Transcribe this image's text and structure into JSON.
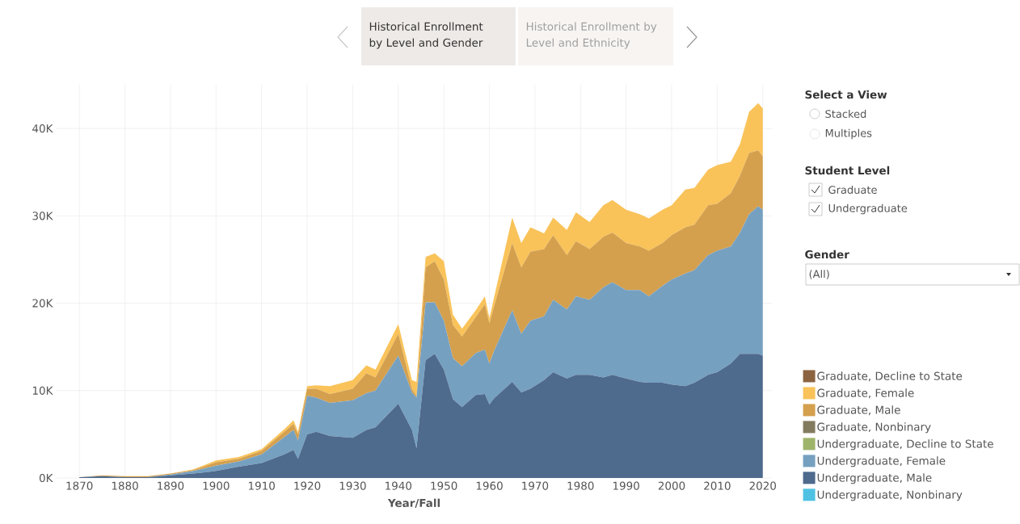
{
  "chart_data": {
    "type": "area",
    "title": "Historical Enrollment by Level and Gender",
    "xlabel": "Year/Fall",
    "annotations": [
      "Historical Enrollment by Level and Ethnicity",
      "Select a View",
      "Stacked",
      "Multiples",
      "Student Level",
      "Graduate",
      "Undergraduate",
      "Gender",
      "(All)"
    ],
    "stacked": true,
    "grid": true,
    "legend": "right",
    "xlim": [
      1865,
      2022
    ],
    "xticks": [
      1870,
      1880,
      1890,
      1900,
      1910,
      1920,
      1930,
      1940,
      1950,
      1960,
      1970,
      1980,
      1990,
      2000,
      2010,
      2020
    ],
    "ylim": [
      0,
      45
    ],
    "yticks": [
      {
        "value": 0,
        "label": "0K"
      },
      {
        "value": 10,
        "label": "10K"
      },
      {
        "value": 20,
        "label": "20K"
      },
      {
        "value": 30,
        "label": "30K"
      },
      {
        "value": 40,
        "label": "40K"
      }
    ],
    "x": [
      1870,
      1875,
      1880,
      1885,
      1890,
      1895,
      1900,
      1905,
      1910,
      1915,
      1917,
      1918,
      1920,
      1922,
      1925,
      1930,
      1933,
      1935,
      1940,
      1943,
      1944,
      1946,
      1948,
      1950,
      1952,
      1954,
      1957,
      1959,
      1960,
      1961,
      1965,
      1967,
      1969,
      1972,
      1974,
      1977,
      1979,
      1982,
      1985,
      1987,
      1990,
      1993,
      1995,
      1998,
      2000,
      2003,
      2005,
      2008,
      2010,
      2013,
      2015,
      2017,
      2019,
      2020
    ],
    "series": [
      {
        "name": "Undergraduate, Nonbinary",
        "color": "#4fc2e3",
        "values": [
          null,
          null,
          null,
          null,
          null,
          null,
          null,
          null,
          null,
          null,
          null,
          null,
          null,
          null,
          null,
          null,
          null,
          null,
          null,
          null,
          null,
          null,
          null,
          null,
          null,
          null,
          null,
          null,
          null,
          null,
          null,
          null,
          null,
          null,
          null,
          null,
          null,
          null,
          null,
          null,
          null,
          null,
          null,
          null,
          null,
          null,
          null,
          null,
          null,
          null,
          null,
          null,
          null,
          null
        ]
      },
      {
        "name": "Undergraduate, Male",
        "color": "#4e6a8d",
        "values": [
          0.1,
          0.2,
          0.1,
          0.1,
          0.3,
          0.5,
          0.8,
          1.3,
          1.7,
          2.7,
          3.2,
          2.2,
          5.0,
          5.3,
          4.8,
          4.6,
          5.5,
          5.8,
          8.5,
          5.5,
          3.4,
          13.5,
          14.2,
          12.4,
          9.0,
          8.1,
          9.5,
          9.6,
          8.4,
          9.1,
          11.0,
          9.8,
          10.2,
          11.2,
          12.1,
          11.4,
          11.8,
          11.8,
          11.5,
          11.8,
          11.4,
          11.0,
          10.9,
          10.9,
          10.7,
          10.5,
          10.9,
          11.8,
          12.1,
          13.1,
          14.2,
          14.2,
          14.2,
          14.0
        ]
      },
      {
        "name": "Undergraduate, Female",
        "color": "#76a0c0",
        "values": [
          0,
          0,
          0,
          0,
          0.1,
          0.3,
          0.6,
          0.6,
          1.0,
          2.0,
          2.3,
          2.1,
          4.4,
          3.9,
          3.8,
          4.3,
          4.2,
          4.2,
          5.5,
          4.3,
          5.8,
          6.6,
          5.9,
          5.6,
          4.7,
          4.7,
          4.8,
          5.1,
          4.7,
          5.4,
          8.2,
          6.7,
          7.8,
          7.3,
          8.3,
          7.9,
          9.0,
          8.6,
          10.3,
          10.6,
          10.1,
          10.5,
          9.9,
          11.1,
          12.0,
          12.9,
          12.9,
          13.7,
          13.9,
          13.4,
          13.9,
          16.0,
          16.9,
          16.7
        ]
      },
      {
        "name": "Undergraduate, Decline to State",
        "color": "#9fb46b",
        "values": [
          null,
          null,
          null,
          null,
          null,
          null,
          null,
          null,
          null,
          null,
          null,
          null,
          null,
          null,
          null,
          null,
          null,
          null,
          null,
          null,
          null,
          null,
          null,
          null,
          null,
          null,
          null,
          null,
          null,
          null,
          null,
          null,
          null,
          null,
          null,
          null,
          null,
          null,
          null,
          null,
          null,
          null,
          null,
          null,
          null,
          null,
          null,
          null,
          null,
          null,
          null,
          null,
          null,
          null
        ]
      },
      {
        "name": "Graduate, Nonbinary",
        "color": "#837b60",
        "values": [
          null,
          null,
          null,
          null,
          null,
          null,
          null,
          null,
          null,
          null,
          null,
          null,
          null,
          null,
          null,
          null,
          null,
          null,
          null,
          null,
          null,
          null,
          null,
          null,
          null,
          null,
          null,
          null,
          null,
          null,
          null,
          null,
          null,
          null,
          null,
          null,
          null,
          null,
          null,
          null,
          null,
          null,
          null,
          null,
          null,
          null,
          null,
          null,
          null,
          null,
          null,
          null,
          null,
          null
        ]
      },
      {
        "name": "Graduate, Male",
        "color": "#d4a04e",
        "values": [
          0,
          0.1,
          0.1,
          0.1,
          0.1,
          0.1,
          0.4,
          0.3,
          0.4,
          0.6,
          0.7,
          0.7,
          0.8,
          1.0,
          1.0,
          1.3,
          2.3,
          1.5,
          2.5,
          0.4,
          0.2,
          4.0,
          4.7,
          4.7,
          3.8,
          3.4,
          4.1,
          5.2,
          4.6,
          5.1,
          7.7,
          7.6,
          7.9,
          7.7,
          7.4,
          6.2,
          6.3,
          5.8,
          5.8,
          5.7,
          5.4,
          5.0,
          5.2,
          4.9,
          5.1,
          5.3,
          5.2,
          5.7,
          5.4,
          6.1,
          6.5,
          7.0,
          6.4,
          6.1
        ]
      },
      {
        "name": "Graduate, Female",
        "color": "#f9c35a",
        "values": [
          0,
          0,
          0,
          0,
          0,
          0.1,
          0.2,
          0.2,
          0.2,
          0.3,
          0.4,
          0.3,
          0.3,
          0.4,
          0.9,
          1.0,
          0.9,
          0.9,
          1.1,
          1.0,
          1.6,
          1.2,
          0.9,
          2.1,
          1.2,
          0.9,
          0.8,
          0.9,
          0.6,
          1.0,
          2.9,
          2.8,
          2.8,
          1.8,
          2.0,
          2.9,
          3.3,
          3.1,
          3.6,
          3.7,
          3.8,
          3.7,
          3.7,
          3.8,
          3.4,
          4.3,
          4.2,
          4.1,
          4.4,
          3.6,
          3.6,
          4.7,
          5.4,
          5.5
        ]
      },
      {
        "name": "Graduate, Decline to State",
        "color": "#8c6340",
        "values": [
          null,
          null,
          null,
          null,
          null,
          null,
          null,
          null,
          null,
          null,
          null,
          null,
          null,
          null,
          null,
          null,
          null,
          null,
          null,
          null,
          null,
          null,
          null,
          null,
          null,
          null,
          null,
          null,
          null,
          null,
          null,
          null,
          null,
          null,
          null,
          null,
          null,
          null,
          null,
          null,
          null,
          null,
          null,
          null,
          null,
          null,
          null,
          null,
          null,
          null,
          null,
          null,
          null,
          null
        ]
      }
    ]
  }
}
